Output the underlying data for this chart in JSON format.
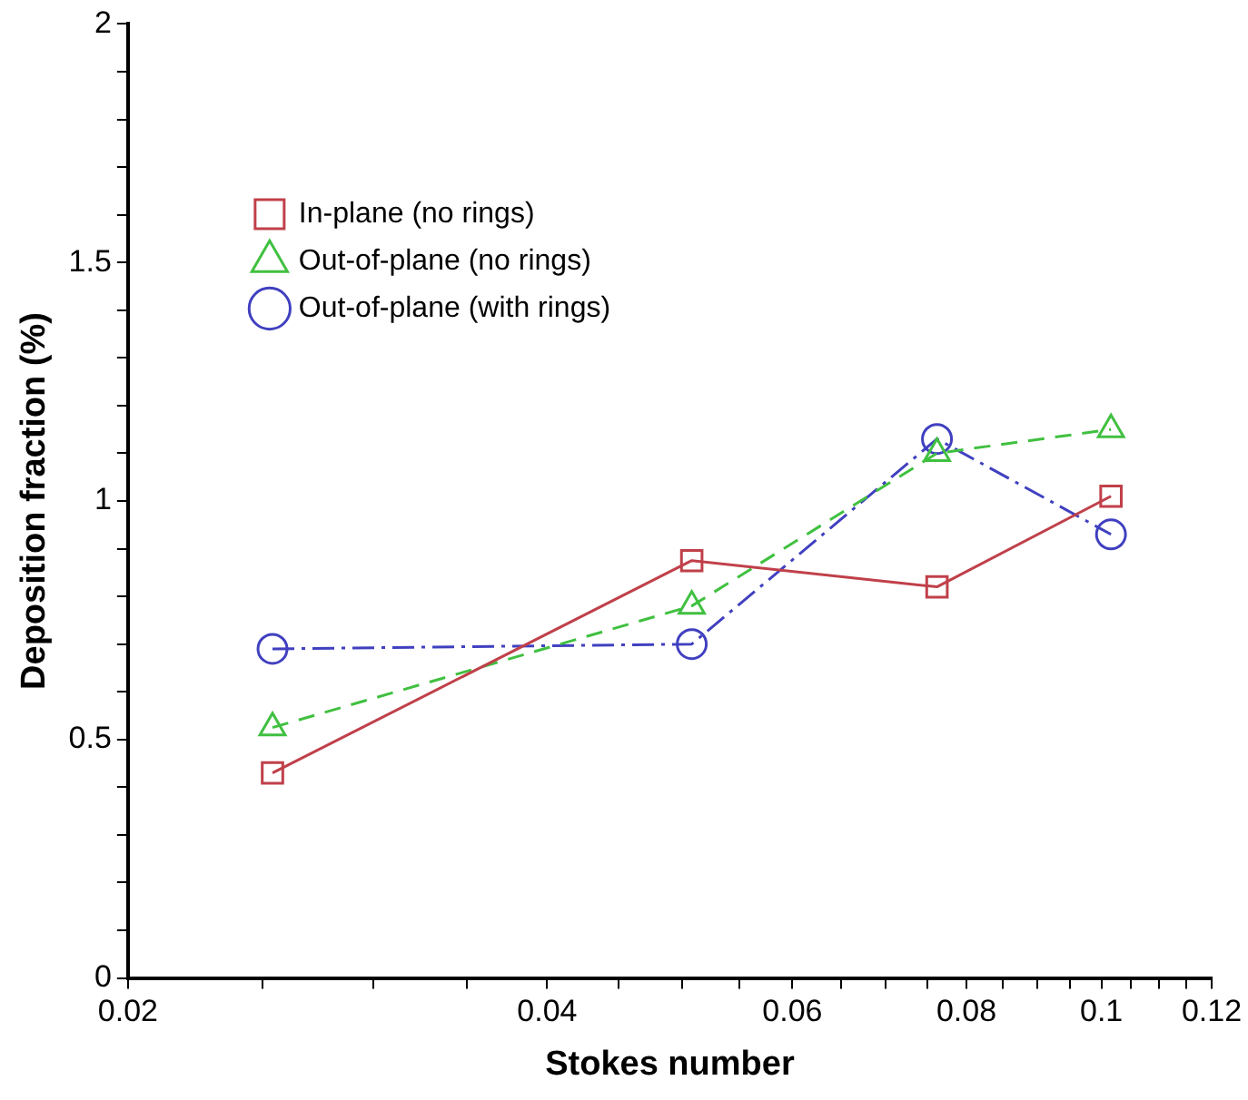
{
  "chart_data": {
    "type": "line",
    "xlabel": "Stokes number",
    "ylabel": "Deposition fraction (%)",
    "log": "x",
    "xlim": [
      0.02,
      0.12
    ],
    "xticks": [
      0.02,
      {
        "value": 0.025,
        "label": null
      },
      {
        "value": 0.03,
        "label": null
      },
      {
        "value": 0.035,
        "label": null
      },
      0.04,
      {
        "value": 0.045,
        "label": null
      },
      {
        "value": 0.05,
        "label": null
      },
      {
        "value": 0.055,
        "label": null
      },
      0.06,
      {
        "value": 0.065,
        "label": null
      },
      {
        "value": 0.07,
        "label": null
      },
      {
        "value": 0.075,
        "label": null
      },
      0.08,
      {
        "value": 0.085,
        "label": null
      },
      {
        "value": 0.09,
        "label": null
      },
      {
        "value": 0.095,
        "label": null
      },
      0.1,
      {
        "value": 0.105,
        "label": null
      },
      {
        "value": 0.11,
        "label": null
      },
      {
        "value": 0.115,
        "label": null
      },
      0.12
    ],
    "ylim": [
      0,
      2
    ],
    "yticks": [
      0,
      {
        "value": 0.1,
        "label": null
      },
      {
        "value": 0.2,
        "label": null
      },
      {
        "value": 0.3,
        "label": null
      },
      {
        "value": 0.4,
        "label": null
      },
      0.5,
      {
        "value": 0.6,
        "label": null
      },
      {
        "value": 0.7,
        "label": null
      },
      {
        "value": 0.8,
        "label": null
      },
      {
        "value": 0.9,
        "label": null
      },
      1,
      {
        "value": 1.1,
        "label": null
      },
      {
        "value": 1.2,
        "label": null
      },
      {
        "value": 1.3,
        "label": null
      },
      {
        "value": 1.4,
        "label": null
      },
      1.5,
      {
        "value": 1.6,
        "label": null
      },
      {
        "value": 1.7,
        "label": null
      },
      {
        "value": 1.8,
        "label": null
      },
      {
        "value": 1.9,
        "label": null
      },
      2
    ],
    "x": [
      0.0254,
      0.0508,
      0.0762,
      0.1016
    ],
    "legend": "top left",
    "grid": false,
    "series": [
      {
        "name": "In-plane (no rings)",
        "color": "#c0404a",
        "values": [
          0.43,
          0.875,
          0.82,
          1.01
        ],
        "marker": "square",
        "line_style": "solid"
      },
      {
        "name": "Out-of-plane (no rings)",
        "color": "#40c040",
        "values": [
          0.525,
          0.78,
          1.1,
          1.15
        ],
        "marker": "triangle",
        "line_style": "dashed"
      },
      {
        "name": "Out-of-plane (with rings)",
        "color": "#4040c0",
        "values": [
          0.69,
          0.7,
          1.13,
          0.93
        ],
        "marker": "circle",
        "line_style": "dashdot"
      }
    ]
  }
}
